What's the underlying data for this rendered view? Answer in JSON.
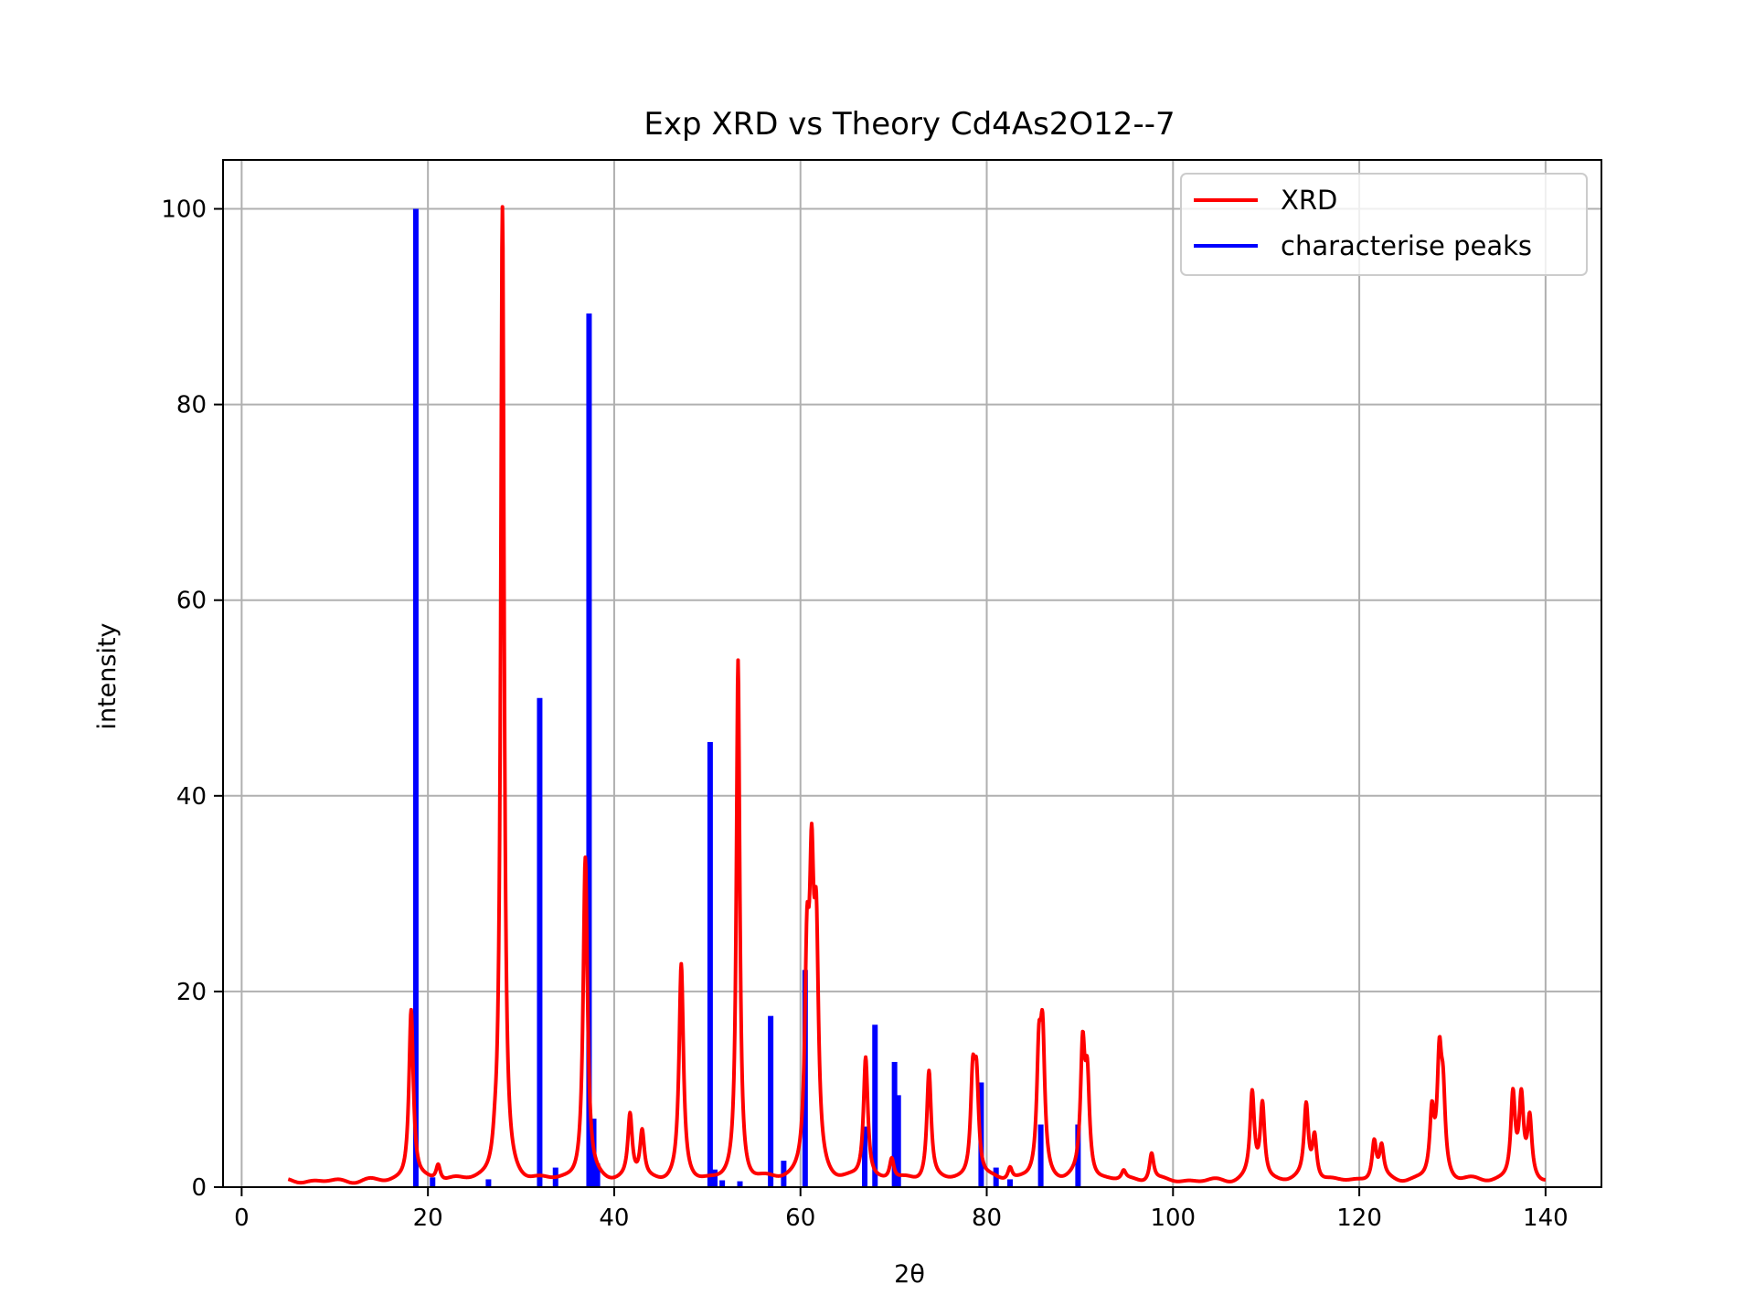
{
  "chart_data": {
    "type": "line",
    "title": "Exp XRD vs Theory Cd4As2O12--7",
    "xlabel": "2θ",
    "ylabel": "intensity",
    "xlim": [
      -2,
      146
    ],
    "ylim": [
      0,
      105
    ],
    "xticks": [
      0,
      20,
      40,
      60,
      80,
      100,
      120,
      140
    ],
    "yticks": [
      0,
      20,
      40,
      60,
      80,
      100
    ],
    "grid": true,
    "legend_position": "top-right",
    "colors": {
      "xrd": "#ff0000",
      "peaks": "#0000ff",
      "grid": "#b0b0b0",
      "axes": "#000000"
    },
    "series": [
      {
        "name": "XRD",
        "type": "line",
        "baseline_range": [
          5,
          140
        ],
        "peaks": [
          {
            "x": 18.2,
            "y": 17.5
          },
          {
            "x": 21.1,
            "y": 1.7
          },
          {
            "x": 27.2,
            "y": 1.5
          },
          {
            "x": 28.0,
            "y": 100
          },
          {
            "x": 36.9,
            "y": 33
          },
          {
            "x": 41.7,
            "y": 6.5
          },
          {
            "x": 43.0,
            "y": 4.8
          },
          {
            "x": 47.2,
            "y": 21.8
          },
          {
            "x": 53.3,
            "y": 53
          },
          {
            "x": 60.7,
            "y": 20
          },
          {
            "x": 61.2,
            "y": 26.5
          },
          {
            "x": 61.7,
            "y": 21.5
          },
          {
            "x": 67.0,
            "y": 12.5
          },
          {
            "x": 69.8,
            "y": 2.2
          },
          {
            "x": 73.8,
            "y": 11.2
          },
          {
            "x": 78.5,
            "y": 9.7
          },
          {
            "x": 78.9,
            "y": 9.3
          },
          {
            "x": 82.5,
            "y": 1.3
          },
          {
            "x": 85.6,
            "y": 11.5
          },
          {
            "x": 86.0,
            "y": 13.2
          },
          {
            "x": 90.3,
            "y": 12.8
          },
          {
            "x": 90.8,
            "y": 9.5
          },
          {
            "x": 94.7,
            "y": 0.9
          },
          {
            "x": 97.7,
            "y": 2.9
          },
          {
            "x": 108.5,
            "y": 8.7
          },
          {
            "x": 109.6,
            "y": 7.7
          },
          {
            "x": 114.3,
            "y": 7.5
          },
          {
            "x": 115.2,
            "y": 4.5
          },
          {
            "x": 121.6,
            "y": 4.0
          },
          {
            "x": 122.4,
            "y": 3.2
          },
          {
            "x": 127.8,
            "y": 6.5
          },
          {
            "x": 128.6,
            "y": 11.4
          },
          {
            "x": 129.0,
            "y": 7.5
          },
          {
            "x": 136.5,
            "y": 8.6
          },
          {
            "x": 137.4,
            "y": 8.0
          },
          {
            "x": 138.3,
            "y": 6.0
          }
        ]
      },
      {
        "name": "characterise peaks",
        "type": "stick",
        "x": [
          18.7,
          20.5,
          26.5,
          32.0,
          33.7,
          37.3,
          37.8,
          38.2,
          50.3,
          50.8,
          51.6,
          53.5,
          56.8,
          58.2,
          60.5,
          66.9,
          68.0,
          70.1,
          70.5,
          79.4,
          81.0,
          82.5,
          85.8,
          89.8
        ],
        "y": [
          100,
          1.0,
          0.8,
          50,
          2.0,
          89.3,
          7.0,
          2.4,
          45.5,
          1.8,
          0.7,
          0.6,
          17.5,
          2.7,
          22.2,
          6.2,
          16.6,
          12.8,
          9.4,
          10.7,
          2.0,
          0.8,
          6.4,
          6.4
        ]
      }
    ]
  }
}
